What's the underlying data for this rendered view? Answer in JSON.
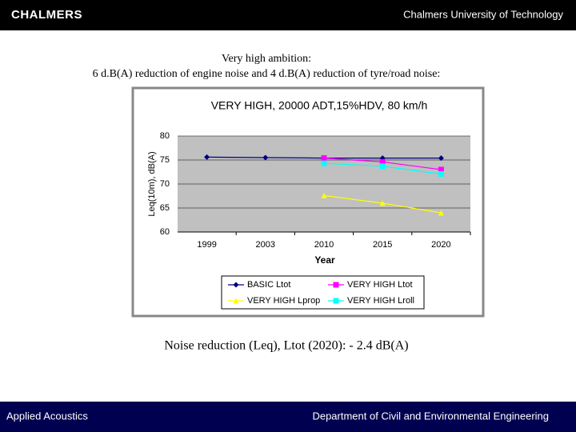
{
  "header": {
    "logo": "CHALMERS",
    "university": "Chalmers University of Technology"
  },
  "heading": {
    "line1": "Very high ambition:",
    "line2": "6 d.B(A) reduction of engine noise and 4 d.B(A) reduction of tyre/road noise:"
  },
  "chart_data": {
    "type": "line",
    "title": "VERY HIGH, 20000 ADT,15%HDV, 80 km/h",
    "x_label": "Year",
    "y_label": "Leq(10m), dB(A)",
    "categories": [
      "1999",
      "2003",
      "2010",
      "2015",
      "2020"
    ],
    "ylim": [
      60,
      80
    ],
    "yticks": [
      60,
      65,
      70,
      75,
      80
    ],
    "grid": true,
    "series": [
      {
        "name": "BASIC Ltot",
        "color": "#000080",
        "marker": "diamond",
        "values": [
          75.6,
          75.5,
          75.4,
          75.4,
          75.4
        ]
      },
      {
        "name": "VERY HIGH Ltot",
        "color": "#ff00ff",
        "marker": "square",
        "values": [
          null,
          null,
          75.4,
          74.6,
          73.0
        ]
      },
      {
        "name": "VERY HIGH Lprop",
        "color": "#ffff00",
        "marker": "triangle",
        "values": [
          null,
          null,
          67.6,
          66.0,
          64.0
        ]
      },
      {
        "name": "VERY HIGH Lroll",
        "color": "#00ffff",
        "marker": "square",
        "values": [
          null,
          null,
          74.3,
          73.7,
          72.1
        ]
      }
    ]
  },
  "caption": "Noise reduction (Leq), Ltot (2020): - 2.4 dB(A)",
  "footer": {
    "left": "Applied Acoustics",
    "right": "Department of Civil and Environmental Engineering"
  }
}
